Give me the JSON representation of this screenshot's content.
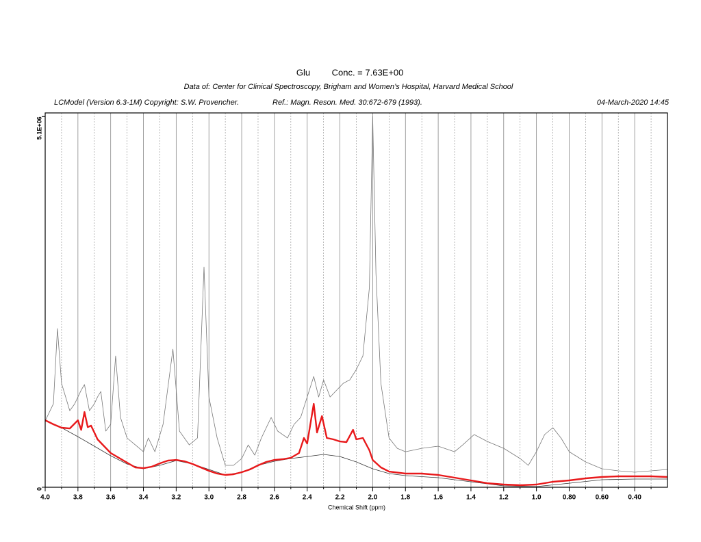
{
  "chart_data": {
    "type": "line",
    "metabolite": "Glu",
    "title": "Conc. = 7.63E+00",
    "subtitle": "Data of: Center for Clinical Spectroscopy, Brigham and Women’s Hospital, Harvard Medical School",
    "software": "LCModel (Version 6.3-1M) Copyright: S.W. Provencher.",
    "reference": "Ref.: Magn. Reson. Med. 30:672-679 (1993).",
    "date": "04-March-2020  14:45",
    "xlabel": "Chemical Shift (ppm)",
    "xlim": [
      4.0,
      0.2
    ],
    "ylim": [
      0,
      5150000
    ],
    "xticks": [
      {
        "value": 4.0,
        "label": "4.0"
      },
      3.8,
      3.6,
      3.4,
      3.2,
      {
        "value": 3.0,
        "label": "3.0"
      },
      2.8,
      2.6,
      2.4,
      2.2,
      {
        "value": 2.0,
        "label": "2.0"
      },
      1.8,
      1.6,
      1.4,
      1.2,
      {
        "value": 1.0,
        "label": "1.0"
      },
      {
        "value": 0.8,
        "label": "0.80"
      },
      {
        "value": 0.6,
        "label": "0.60"
      },
      {
        "value": 0.4,
        "label": "0.40"
      }
    ],
    "xminorticks": [
      3.9,
      3.7,
      3.5,
      3.3,
      3.1,
      2.9,
      2.7,
      2.5,
      2.3,
      2.1,
      1.9,
      1.7,
      1.5,
      1.3,
      1.1,
      0.9,
      0.7,
      0.5,
      0.3
    ],
    "yticks": [
      0,
      {
        "value": 5100000,
        "label": "5.1E+06"
      }
    ],
    "grid": true,
    "series": [
      {
        "color": "#777777",
        "width": 0.8,
        "x": [
          4.0,
          3.95,
          3.925,
          3.9,
          3.85,
          3.82,
          3.78,
          3.76,
          3.73,
          3.7,
          3.68,
          3.66,
          3.63,
          3.6,
          3.57,
          3.54,
          3.5,
          3.45,
          3.4,
          3.37,
          3.33,
          3.28,
          3.22,
          3.18,
          3.12,
          3.07,
          3.03,
          3.0,
          2.95,
          2.9,
          2.85,
          2.8,
          2.76,
          2.72,
          2.68,
          2.62,
          2.58,
          2.52,
          2.48,
          2.44,
          2.4,
          2.36,
          2.33,
          2.3,
          2.26,
          2.22,
          2.18,
          2.14,
          2.1,
          2.06,
          2.02,
          2.0,
          1.98,
          1.95,
          1.9,
          1.85,
          1.8,
          1.7,
          1.6,
          1.5,
          1.45,
          1.38,
          1.3,
          1.2,
          1.1,
          1.05,
          1.0,
          0.95,
          0.9,
          0.85,
          0.8,
          0.7,
          0.6,
          0.5,
          0.4,
          0.3,
          0.2
        ],
        "values": [
          913000,
          1148000,
          2183000,
          1430000,
          1054000,
          1148000,
          1336000,
          1412000,
          1054000,
          1148000,
          1242000,
          1317000,
          772000,
          866000,
          1807000,
          960000,
          678000,
          583000,
          489000,
          678000,
          489000,
          866000,
          1901000,
          772000,
          583000,
          678000,
          3030000,
          1242000,
          678000,
          301000,
          301000,
          395000,
          583000,
          442000,
          678000,
          960000,
          772000,
          678000,
          866000,
          960000,
          1242000,
          1524000,
          1242000,
          1477000,
          1242000,
          1336000,
          1430000,
          1477000,
          1619000,
          1807000,
          2748000,
          5100000,
          2936000,
          1430000,
          678000,
          536000,
          489000,
          536000,
          565000,
          489000,
          583000,
          725000,
          630000,
          536000,
          395000,
          301000,
          489000,
          725000,
          819000,
          678000,
          489000,
          348000,
          254000,
          226000,
          207000,
          226000,
          245000
        ]
      },
      {
        "color": "#333333",
        "width": 0.8,
        "x": [
          4.0,
          3.9,
          3.8,
          3.7,
          3.6,
          3.5,
          3.4,
          3.3,
          3.2,
          3.1,
          3.0,
          2.9,
          2.8,
          2.7,
          2.6,
          2.5,
          2.4,
          2.3,
          2.2,
          2.1,
          2.0,
          1.9,
          1.8,
          1.6,
          1.4,
          1.2,
          1.0,
          0.8,
          0.6,
          0.4,
          0.2
        ],
        "values": [
          913000,
          819000,
          696000,
          565000,
          433000,
          320000,
          254000,
          301000,
          367000,
          320000,
          245000,
          169000,
          207000,
          301000,
          358000,
          395000,
          423000,
          452000,
          423000,
          348000,
          254000,
          188000,
          160000,
          132000,
          75000,
          19000,
          9000,
          56000,
          104000,
          113000,
          113000
        ]
      },
      {
        "color": "#e8191b",
        "width": 2.4,
        "x": [
          4.0,
          3.95,
          3.9,
          3.85,
          3.8,
          3.78,
          3.76,
          3.74,
          3.72,
          3.7,
          3.68,
          3.6,
          3.5,
          3.45,
          3.4,
          3.35,
          3.3,
          3.25,
          3.2,
          3.15,
          3.1,
          3.05,
          3.0,
          2.95,
          2.9,
          2.85,
          2.8,
          2.75,
          2.7,
          2.65,
          2.6,
          2.55,
          2.5,
          2.45,
          2.42,
          2.4,
          2.36,
          2.34,
          2.31,
          2.28,
          2.24,
          2.2,
          2.16,
          2.12,
          2.1,
          2.06,
          2.02,
          2.0,
          1.95,
          1.9,
          1.8,
          1.7,
          1.6,
          1.5,
          1.4,
          1.3,
          1.2,
          1.1,
          1.0,
          0.9,
          0.8,
          0.7,
          0.6,
          0.5,
          0.4,
          0.3,
          0.2
        ],
        "values": [
          922000,
          866000,
          819000,
          809000,
          922000,
          790000,
          1035000,
          828000,
          847000,
          753000,
          659000,
          471000,
          339000,
          273000,
          263000,
          282000,
          329000,
          367000,
          376000,
          358000,
          320000,
          273000,
          226000,
          188000,
          169000,
          179000,
          207000,
          245000,
          301000,
          348000,
          376000,
          386000,
          405000,
          471000,
          678000,
          602000,
          1148000,
          753000,
          979000,
          678000,
          659000,
          630000,
          621000,
          790000,
          659000,
          678000,
          508000,
          376000,
          273000,
          216000,
          188000,
          188000,
          169000,
          132000,
          94000,
          56000,
          38000,
          28000,
          38000,
          75000,
          94000,
          122000,
          141000,
          151000,
          151000,
          151000,
          141000
        ]
      }
    ]
  }
}
